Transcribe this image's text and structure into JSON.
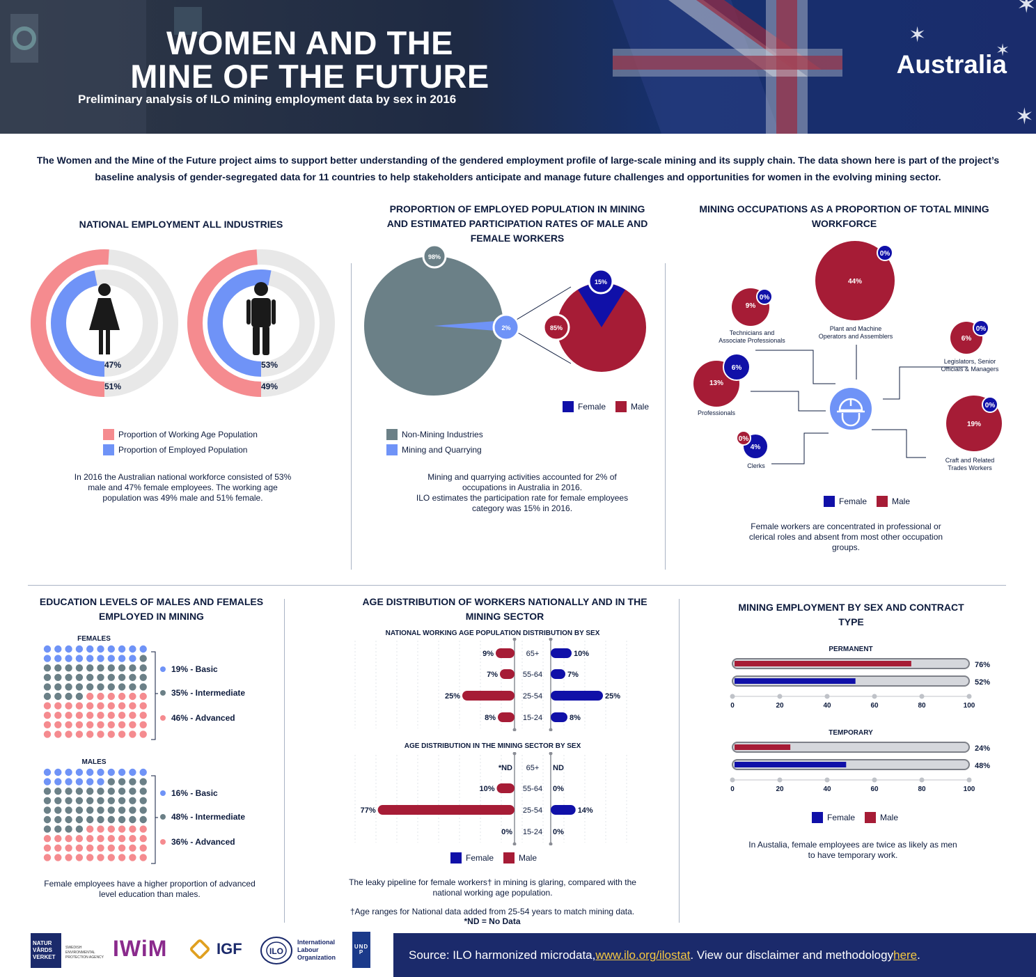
{
  "header": {
    "title_line1": "WOMEN AND THE",
    "title_line2": "MINE OF THE FUTURE",
    "subtitle": "Preliminary analysis of ILO mining employment data by sex in 2016",
    "country": "Australia"
  },
  "intro": "The Women and the Mine of the Future project aims to support better understanding of the gendered employment profile of large-scale mining and its supply chain. The data shown here is part of the project’s baseline analysis of gender-segregated data for 11 countries to help stakeholders anticipate and manage future challenges and opportunities for women in the evolving mining sector.",
  "national": {
    "heading": "NATIONAL EMPLOYMENT ALL INDUSTRIES",
    "female": {
      "employed": "47%",
      "working_age": "51%",
      "employed_value": 47,
      "working_age_value": 51
    },
    "male": {
      "employed": "53%",
      "working_age": "49%",
      "employed_value": 53,
      "working_age_value": 49
    },
    "legend_working_age": "Proportion of Working Age Population",
    "legend_employed": "Proportion of Employed Population",
    "caption": "In 2016 the Australian national workforce consisted of 53% male and 47% female employees. The working age population was 49% male and 51% female."
  },
  "proportion": {
    "heading": "PROPORTION OF EMPLOYED POPULATION IN MINING AND ESTIMATED PARTICIPATION RATES OF MALE AND FEMALE WORKERS",
    "non_mining": "98%",
    "mining": "2%",
    "female": "15%",
    "male": "85%",
    "legend_female": "Female",
    "legend_male": "Male",
    "legend_non_mining": "Non-Mining Industries",
    "legend_mining": "Mining and Quarrying",
    "caption1": "Mining and quarrying activities accounted for 2% of occupations in Australia in 2016.",
    "caption2": "ILO estimates the participation rate for female employees category was 15% in 2016."
  },
  "occupations": {
    "heading": "MINING OCCUPATIONS AS A PROPORTION OF TOTAL MINING WORKFORCE",
    "items": [
      {
        "name": "Technicians and Associate Professionals",
        "male": "9%",
        "female": "0%"
      },
      {
        "name": "Plant and Machine Operators and Assemblers",
        "male": "44%",
        "female": "0%"
      },
      {
        "name": "Legislators, Senior Officials & Managers",
        "male": "6%",
        "female": "0%"
      },
      {
        "name": "Professionals",
        "male": "13%",
        "female": "6%"
      },
      {
        "name": "Clerks",
        "male": "0%",
        "female": "4%"
      },
      {
        "name": "Craft and Related Trades Workers",
        "male": "19%",
        "female": "0%"
      }
    ],
    "legend_female": "Female",
    "legend_male": "Male",
    "caption": "Female workers are concentrated in professional or clerical roles and absent from most other occupation groups."
  },
  "education": {
    "heading": "EDUCATION LEVELS OF MALES AND FEMALES EMPLOYED IN MINING",
    "females_label": "FEMALES",
    "males_label": "MALES",
    "females": [
      {
        "label": "19% - Basic",
        "value": 19
      },
      {
        "label": "35% - Intermediate",
        "value": 35
      },
      {
        "label": "46% - Advanced",
        "value": 46
      }
    ],
    "males": [
      {
        "label": "16% - Basic",
        "value": 16
      },
      {
        "label": "48% - Intermediate",
        "value": 48
      },
      {
        "label": "36% - Advanced",
        "value": 36
      }
    ],
    "caption": "Female employees have a higher proportion of advanced level education than males."
  },
  "age": {
    "heading": "AGE DISTRIBUTION OF WORKERS NATIONALLY AND IN THE MINING SECTOR",
    "national_sub": "NATIONAL WORKING AGE POPULATION DISTRIBUTION BY SEX",
    "mining_sub": "AGE DISTRIBUTION IN THE MINING SECTOR BY SEX",
    "legend_female": "Female",
    "legend_male": "Male",
    "caption": "The leaky pipeline for female workers† in mining is glaring, compared with the national working age population.",
    "note1": "†Age ranges for National data added from 25-54 years to match mining data.",
    "note2": "*ND = No Data"
  },
  "chart_data": [
    {
      "type": "bar",
      "title": "NATIONAL WORKING AGE POPULATION DISTRIBUTION BY SEX",
      "categories": [
        "65+",
        "55-64",
        "25-54",
        "15-24"
      ],
      "series": [
        {
          "name": "Male",
          "values": [
            9,
            7,
            25,
            8
          ],
          "labels": [
            "9%",
            "7%",
            "25%",
            "8%"
          ]
        },
        {
          "name": "Female",
          "values": [
            10,
            7,
            25,
            8
          ],
          "labels": [
            "10%",
            "7%",
            "25%",
            "8%"
          ]
        }
      ]
    },
    {
      "type": "bar",
      "title": "AGE DISTRIBUTION IN THE MINING SECTOR BY SEX",
      "categories": [
        "65+",
        "55-64",
        "25-54",
        "15-24"
      ],
      "series": [
        {
          "name": "Male",
          "values": [
            0,
            10,
            77,
            0
          ],
          "labels": [
            "*ND",
            "10%",
            "77%",
            "0%"
          ]
        },
        {
          "name": "Female",
          "values": [
            0,
            0,
            14,
            0
          ],
          "labels": [
            "ND",
            "0%",
            "14%",
            "0%"
          ]
        }
      ]
    },
    {
      "type": "bar",
      "title": "PERMANENT",
      "categories": [
        "Male",
        "Female"
      ],
      "values": [
        76,
        52
      ],
      "labels": [
        "76%",
        "52%"
      ],
      "ticks": [
        "0",
        "20",
        "40",
        "60",
        "80",
        "100"
      ],
      "ylim": [
        0,
        100
      ]
    },
    {
      "type": "bar",
      "title": "TEMPORARY",
      "categories": [
        "Male",
        "Female"
      ],
      "values": [
        24,
        48
      ],
      "labels": [
        "24%",
        "48%"
      ],
      "ticks": [
        "0",
        "20",
        "40",
        "60",
        "80",
        "100"
      ],
      "ylim": [
        0,
        100
      ]
    }
  ],
  "contract": {
    "heading": "MINING EMPLOYMENT BY SEX AND CONTRACT TYPE",
    "legend_female": "Female",
    "legend_male": "Male",
    "caption": "In Austalia, female employees are twice as likely as men to have temporary work."
  },
  "logos": {
    "naturvardsverket": "NATUR\nVÅRDS\nVERKET",
    "sepa": "SWEDISH ENVIRONMENTAL PROTECTION AGENCY",
    "iwim": "IWiM",
    "igf": "IGF",
    "ilo": "International Labour Organization",
    "undp": "UNDP"
  },
  "footer": {
    "prefix": "Source: ILO harmonized microdata, ",
    "link": "www.ilo.org/ilostat",
    "middle": ". View our disclaimer and methodology ",
    "here": "here",
    "suffix": "."
  },
  "colors": {
    "navy": "#0d1b3d",
    "female_blue": "#1010a8",
    "male_red": "#a61c36",
    "pink": "#f58b8f",
    "light_blue": "#6f93f7",
    "slate": "#6b8087",
    "grey": "#e8e8e8"
  }
}
